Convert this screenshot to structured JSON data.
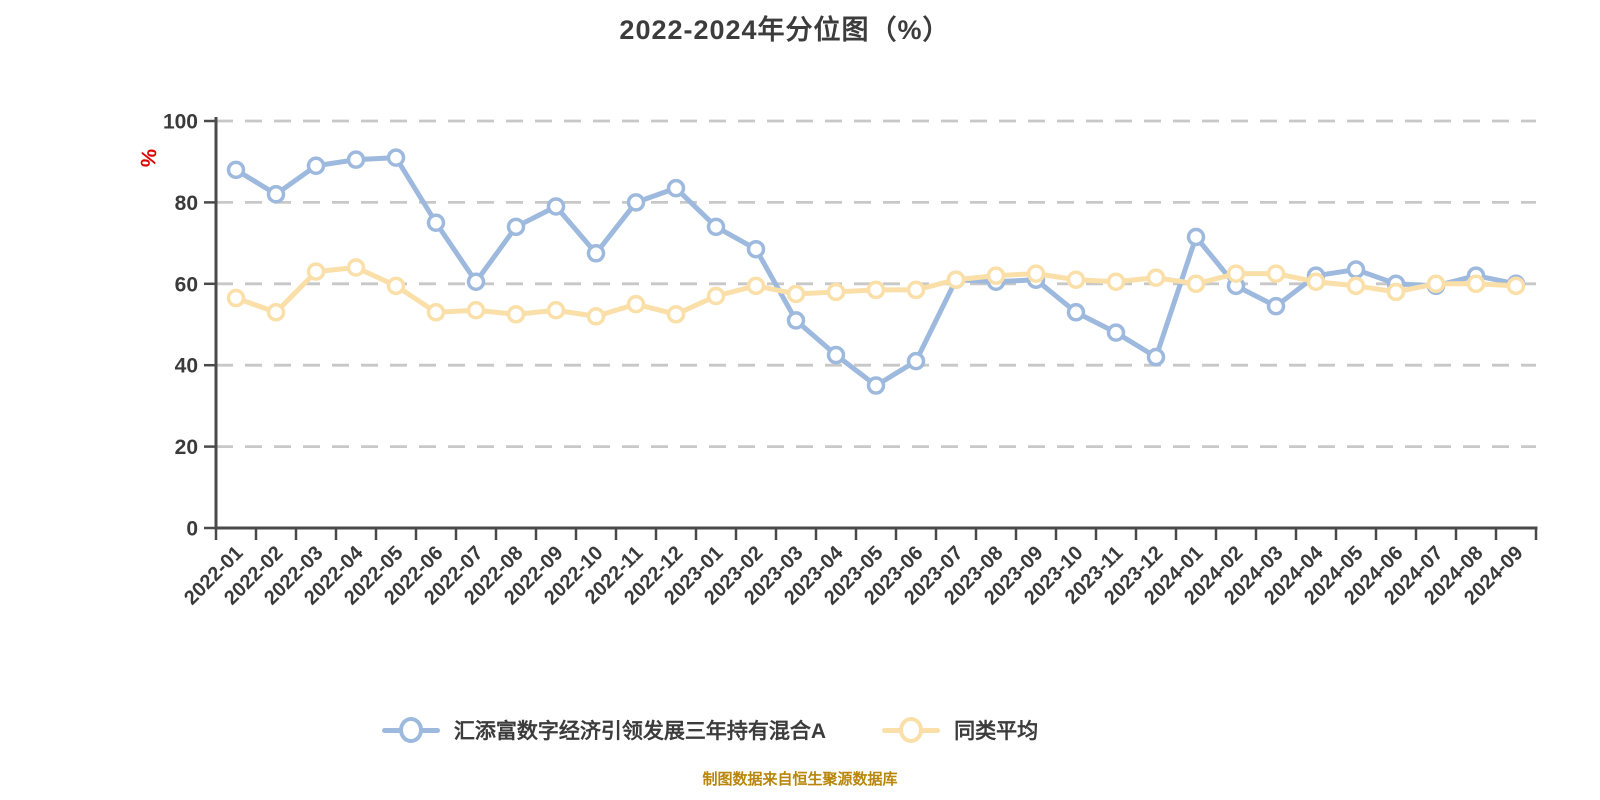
{
  "page": {
    "title": "2022-2024年分位图（%）",
    "source_note": "制图数据来自恒生聚源数据库"
  },
  "style": {
    "title_color": "#3c3c3c",
    "axis_color": "#4a4a4a",
    "tick_label_color": "#3a3a3a",
    "gridline_color": "#c8c8c8",
    "fund_series_color": "#9EB9DE",
    "average_series_color": "#FADFA8",
    "unit_label_color": "#E00000",
    "source_note_color": "#B8860B",
    "marker_fill": "#ffffff"
  },
  "chart_data": {
    "type": "line",
    "title": "2022-2024年分位图（%）",
    "xlabel": "",
    "ylabel": "%",
    "ylim": [
      0,
      100
    ],
    "yticks": [
      0,
      20,
      40,
      60,
      80,
      100
    ],
    "grid": "horizontal dashed gridlines at y=20,40,60,80,100",
    "legend_position": "bottom",
    "source_note": "制图数据来自恒生聚源数据库",
    "categories": [
      "2022-01",
      "2022-02",
      "2022-03",
      "2022-04",
      "2022-05",
      "2022-06",
      "2022-07",
      "2022-08",
      "2022-09",
      "2022-10",
      "2022-11",
      "2022-12",
      "2023-01",
      "2023-02",
      "2023-03",
      "2023-04",
      "2023-05",
      "2023-06",
      "2023-07",
      "2023-08",
      "2023-09",
      "2023-10",
      "2023-11",
      "2023-12",
      "2024-01",
      "2024-02",
      "2024-03",
      "2024-04",
      "2024-05",
      "2024-06",
      "2024-07",
      "2024-08",
      "2024-09"
    ],
    "series": [
      {
        "name": "汇添富数字经济引领发展三年持有混合A",
        "color": "#9EB9DE",
        "values": [
          88,
          82,
          89,
          90.5,
          91,
          75,
          60.5,
          74,
          79,
          67.5,
          80,
          83.5,
          74,
          68.5,
          51,
          42.5,
          35,
          41,
          61,
          60.5,
          61,
          53,
          48,
          42,
          71.5,
          59.5,
          54.5,
          62,
          63.5,
          60,
          59.5,
          62,
          60
        ]
      },
      {
        "name": "同类平均",
        "color": "#FADFA8",
        "values": [
          56.5,
          53,
          63,
          64,
          59.5,
          53,
          53.5,
          52.5,
          53.5,
          52,
          55,
          52.5,
          57,
          59.5,
          57.5,
          58,
          58.5,
          58.5,
          61,
          62,
          62.5,
          61,
          60.5,
          61.5,
          60,
          62.5,
          62.5,
          60.5,
          59.5,
          58,
          60,
          60,
          59.5
        ]
      }
    ]
  }
}
